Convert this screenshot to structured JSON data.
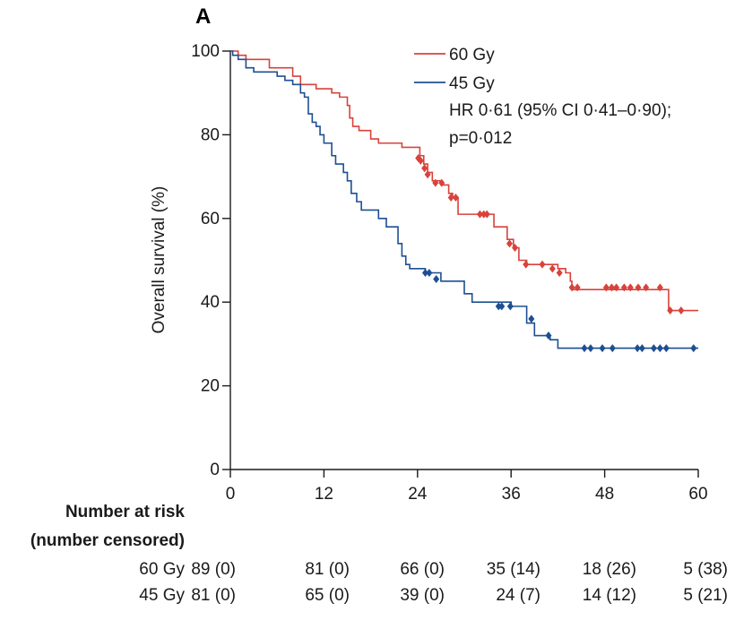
{
  "panel_label": "A",
  "chart_data": {
    "type": "line",
    "subtype": "kaplan-meier step",
    "ylabel": "Overall survival (%)",
    "xlabel": "",
    "xlim": [
      0,
      60
    ],
    "ylim": [
      0,
      100
    ],
    "xticks": [
      "0",
      "12",
      "24",
      "36",
      "48",
      "60"
    ],
    "yticks": [
      "0",
      "20",
      "40",
      "60",
      "80",
      "100"
    ],
    "legend_position": "top-right",
    "annotation": [
      "HR 0·61 (95% CI 0·41–0·90);",
      "p=0·012"
    ],
    "series": [
      {
        "name": "60 Gy",
        "color": "#d9423b",
        "steps": [
          [
            0,
            100
          ],
          [
            1,
            99
          ],
          [
            2,
            98
          ],
          [
            5,
            96
          ],
          [
            8,
            94
          ],
          [
            9,
            92
          ],
          [
            11,
            91
          ],
          [
            13,
            90
          ],
          [
            14,
            89
          ],
          [
            15,
            87
          ],
          [
            15.3,
            84
          ],
          [
            15.7,
            82
          ],
          [
            16.5,
            81
          ],
          [
            18,
            79
          ],
          [
            19,
            78
          ],
          [
            22,
            77
          ],
          [
            24.3,
            75
          ],
          [
            24.8,
            73
          ],
          [
            25.3,
            71
          ],
          [
            25.9,
            69
          ],
          [
            27,
            68
          ],
          [
            28,
            66
          ],
          [
            28.5,
            65
          ],
          [
            29.2,
            61
          ],
          [
            31.5,
            61
          ],
          [
            33.8,
            58
          ],
          [
            35.5,
            55
          ],
          [
            36.3,
            53
          ],
          [
            37,
            50
          ],
          [
            38,
            49
          ],
          [
            42,
            48
          ],
          [
            43,
            47
          ],
          [
            43.6,
            45
          ],
          [
            43.8,
            43
          ],
          [
            56,
            43
          ],
          [
            56.2,
            38
          ],
          [
            60,
            38
          ]
        ],
        "censored": [
          [
            24.1,
            74.4
          ],
          [
            24.4,
            73.8
          ],
          [
            24.9,
            72.0
          ],
          [
            25.3,
            70.5
          ],
          [
            26.3,
            68.5
          ],
          [
            27.1,
            68.5
          ],
          [
            28.3,
            65.0
          ],
          [
            28.9,
            65.0
          ],
          [
            32.0,
            61.0
          ],
          [
            32.5,
            61.0
          ],
          [
            32.9,
            61.0
          ],
          [
            35.8,
            54.0
          ],
          [
            36.5,
            53.0
          ],
          [
            37.9,
            49.0
          ],
          [
            40.0,
            49.0
          ],
          [
            41.3,
            48.0
          ],
          [
            42.2,
            47.0
          ],
          [
            43.8,
            43.5
          ],
          [
            44.5,
            43.5
          ],
          [
            48.2,
            43.5
          ],
          [
            48.9,
            43.5
          ],
          [
            49.5,
            43.5
          ],
          [
            50.5,
            43.5
          ],
          [
            51.3,
            43.5
          ],
          [
            52.3,
            43.5
          ],
          [
            53.3,
            43.5
          ],
          [
            55.1,
            43.5
          ],
          [
            56.4,
            38.0
          ],
          [
            57.8,
            38.0
          ]
        ]
      },
      {
        "name": "45 Gy",
        "color": "#1d4f91",
        "steps": [
          [
            0,
            100
          ],
          [
            0.3,
            99
          ],
          [
            1,
            98
          ],
          [
            2,
            96
          ],
          [
            3,
            95
          ],
          [
            6,
            94
          ],
          [
            7,
            93
          ],
          [
            8,
            92
          ],
          [
            9,
            90
          ],
          [
            9.5,
            89
          ],
          [
            10,
            85
          ],
          [
            10.5,
            83
          ],
          [
            11,
            82
          ],
          [
            11.5,
            80
          ],
          [
            12,
            78
          ],
          [
            13,
            75
          ],
          [
            13.5,
            73
          ],
          [
            14.5,
            71
          ],
          [
            15,
            69
          ],
          [
            15.5,
            66
          ],
          [
            16.2,
            64
          ],
          [
            16.8,
            62
          ],
          [
            19,
            60
          ],
          [
            20,
            58
          ],
          [
            21.5,
            54
          ],
          [
            22,
            51
          ],
          [
            22.5,
            49
          ],
          [
            23,
            48
          ],
          [
            25,
            47
          ],
          [
            27,
            45
          ],
          [
            30,
            42
          ],
          [
            31,
            40
          ],
          [
            36,
            39
          ],
          [
            38,
            35
          ],
          [
            39,
            32
          ],
          [
            41,
            31
          ],
          [
            42,
            29
          ],
          [
            60,
            29
          ]
        ],
        "censored": [
          [
            25.0,
            47.0
          ],
          [
            25.5,
            47.0
          ],
          [
            26.4,
            45.5
          ],
          [
            34.4,
            39.0
          ],
          [
            34.8,
            39.0
          ],
          [
            35.9,
            39.0
          ],
          [
            38.6,
            36.0
          ],
          [
            40.8,
            32.0
          ],
          [
            45.4,
            29.0
          ],
          [
            46.2,
            29.0
          ],
          [
            47.7,
            29.0
          ],
          [
            49.0,
            29.0
          ],
          [
            52.2,
            29.0
          ],
          [
            52.8,
            29.0
          ],
          [
            54.3,
            29.0
          ],
          [
            55.1,
            29.0
          ],
          [
            55.9,
            29.0
          ],
          [
            59.4,
            29.0
          ]
        ]
      }
    ]
  },
  "risk_table": {
    "title_line1": "Number at risk",
    "title_line2": "(number censored)",
    "rows": [
      {
        "label": "60 Gy",
        "cells": [
          "89 (0)",
          "81 (0)",
          "66 (0)",
          "35 (14)",
          "18 (26)",
          "5 (38)"
        ]
      },
      {
        "label": "45 Gy",
        "cells": [
          "81 (0)",
          "65 (0)",
          "39 (0)",
          "24 (7)",
          "14 (12)",
          "5 (21)"
        ]
      }
    ]
  }
}
